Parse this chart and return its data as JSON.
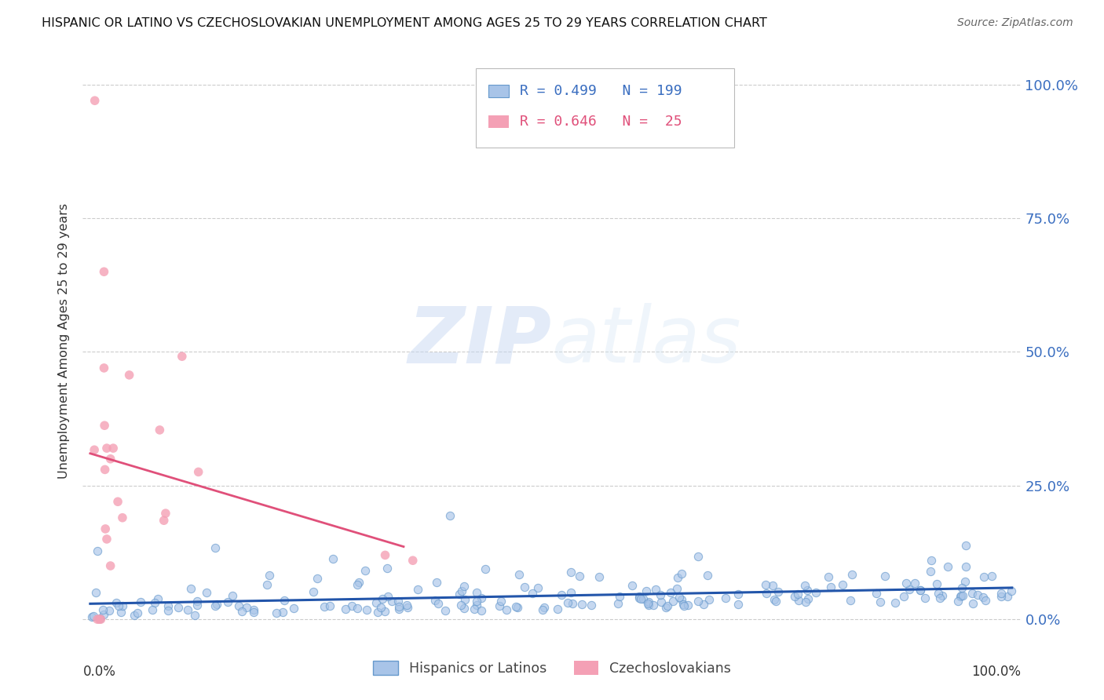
{
  "title": "HISPANIC OR LATINO VS CZECHOSLOVAKIAN UNEMPLOYMENT AMONG AGES 25 TO 29 YEARS CORRELATION CHART",
  "source": "Source: ZipAtlas.com",
  "ylabel": "Unemployment Among Ages 25 to 29 years",
  "ytick_vals": [
    0,
    0.25,
    0.5,
    0.75,
    1.0
  ],
  "xtick_positions": [
    0,
    0.125,
    0.25,
    0.375,
    0.5,
    0.625,
    0.75,
    0.875,
    1.0
  ],
  "legend_blue_R": "0.499",
  "legend_blue_N": "199",
  "legend_pink_R": "0.646",
  "legend_pink_N": " 25",
  "legend_label_blue": "Hispanics or Latinos",
  "legend_label_pink": "Czechoslovakians",
  "blue_color": "#a8c4e8",
  "pink_color": "#f4a0b5",
  "blue_line_color": "#2255aa",
  "pink_line_color": "#e0507a",
  "blue_edge_color": "#6699cc",
  "watermark_color": "#d0e0f5",
  "background_color": "#ffffff",
  "blue_N": 199,
  "pink_N": 25,
  "blue_seed": 12,
  "pink_seed": 99
}
